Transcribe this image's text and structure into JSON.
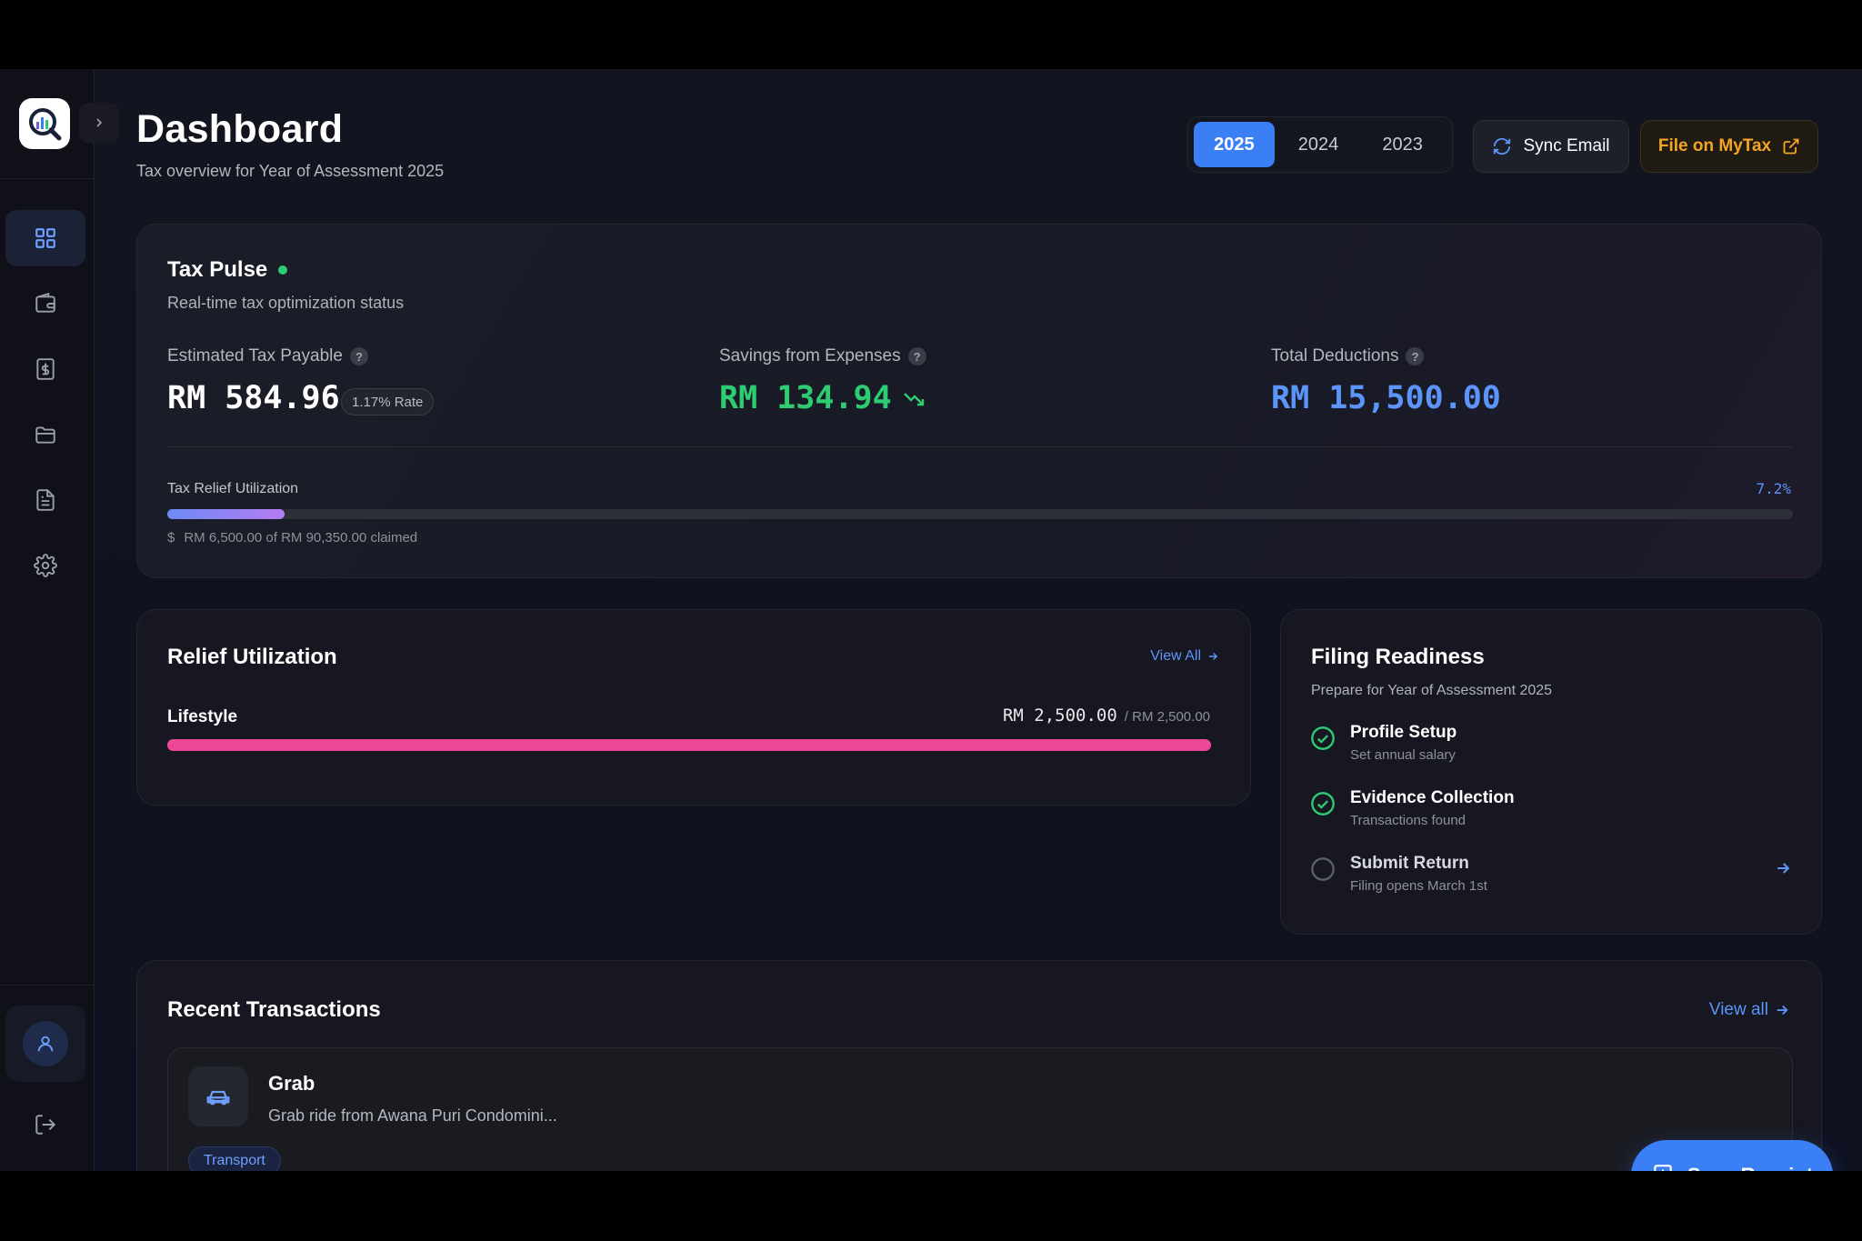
{
  "header": {
    "title": "Dashboard",
    "subtitle": "Tax overview for Year of Assessment 2025",
    "years": [
      "2025",
      "2024",
      "2023"
    ],
    "active_year": "2025",
    "sync_label": "Sync Email",
    "mytax_label": "File on MyTax"
  },
  "sidebar": {
    "items": [
      {
        "icon": "dashboard-grid-icon",
        "active": true
      },
      {
        "icon": "wallet-icon",
        "active": false
      },
      {
        "icon": "dollar-receipt-icon",
        "active": false
      },
      {
        "icon": "folder-icon",
        "active": false
      },
      {
        "icon": "document-icon",
        "active": false
      },
      {
        "icon": "gear-icon",
        "active": false
      }
    ],
    "bottom": [
      "user-icon",
      "logout-icon"
    ]
  },
  "tax_pulse": {
    "title": "Tax Pulse",
    "subtitle": "Real-time tax optimization status",
    "estimated_label": "Estimated Tax Payable",
    "estimated_value": "RM 584.96",
    "rate_badge": "1.17% Rate",
    "savings_label": "Savings from Expenses",
    "savings_value": "RM 134.94",
    "deductions_label": "Total Deductions",
    "deductions_value": "RM 15,500.00",
    "utilization_label": "Tax Relief Utilization",
    "utilization_percent": "7.2%",
    "utilization_fraction": 0.072,
    "claimed_text": "RM 6,500.00 of RM 90,350.00 claimed"
  },
  "relief": {
    "title": "Relief Utilization",
    "view_all": "View All",
    "items": [
      {
        "name": "Lifestyle",
        "claimed": "RM 2,500.00",
        "limit": "/ RM 2,500.00",
        "fraction": 1.0
      }
    ]
  },
  "filing": {
    "title": "Filing Readiness",
    "subtitle": "Prepare for Year of Assessment 2025",
    "steps": [
      {
        "title": "Profile Setup",
        "desc": "Set annual salary",
        "done": true
      },
      {
        "title": "Evidence Collection",
        "desc": "Transactions found",
        "done": true
      },
      {
        "title": "Submit Return",
        "desc": "Filing opens March 1st",
        "done": false
      }
    ]
  },
  "recent": {
    "title": "Recent Transactions",
    "view_all": "View all",
    "transactions": [
      {
        "merchant": "Grab",
        "description": "Grab ride from Awana Puri Condomini...",
        "category": "Transport",
        "icon": "car-icon"
      }
    ]
  },
  "scan_label": "Scan Receipt",
  "colors": {
    "accent": "#3b7ff5",
    "positive": "#2ecc71",
    "deductions": "#5b95f9",
    "warning": "#f5a524",
    "relief_bar": "#ec4899"
  }
}
